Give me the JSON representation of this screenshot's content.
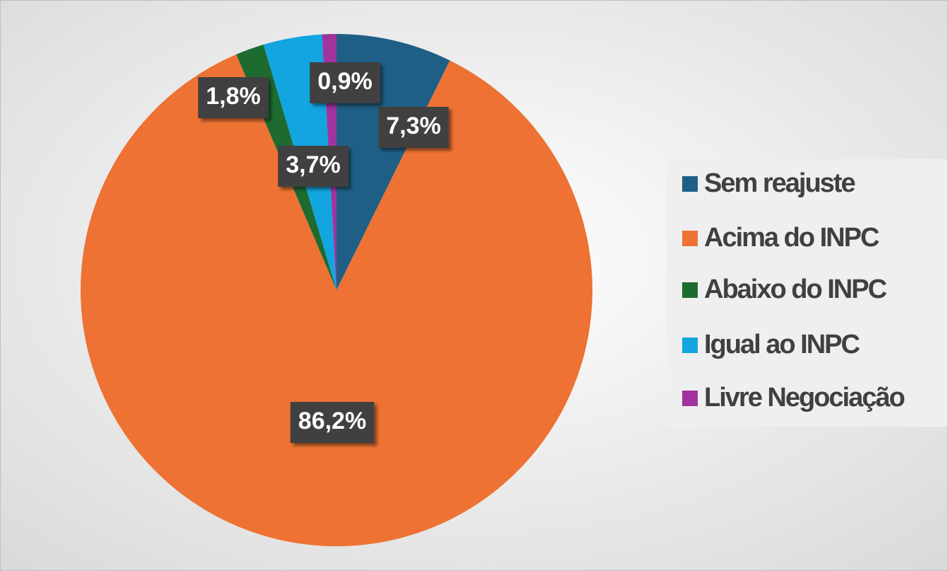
{
  "chart_data": {
    "type": "pie",
    "categories": [
      "Sem reajuste",
      "Acima do INPC",
      "Abaixo do INPC",
      "Igual ao INPC",
      "Livre Negociação"
    ],
    "values": [
      7.3,
      86.2,
      1.8,
      3.7,
      0.9
    ],
    "value_labels": [
      "7,3%",
      "86,2%",
      "1,8%",
      "3,7%",
      "0,9%"
    ],
    "colors": [
      "#1f5f85",
      "#ed7233",
      "#1e6b30",
      "#12a5e0",
      "#a0339e"
    ],
    "legend": "right"
  }
}
